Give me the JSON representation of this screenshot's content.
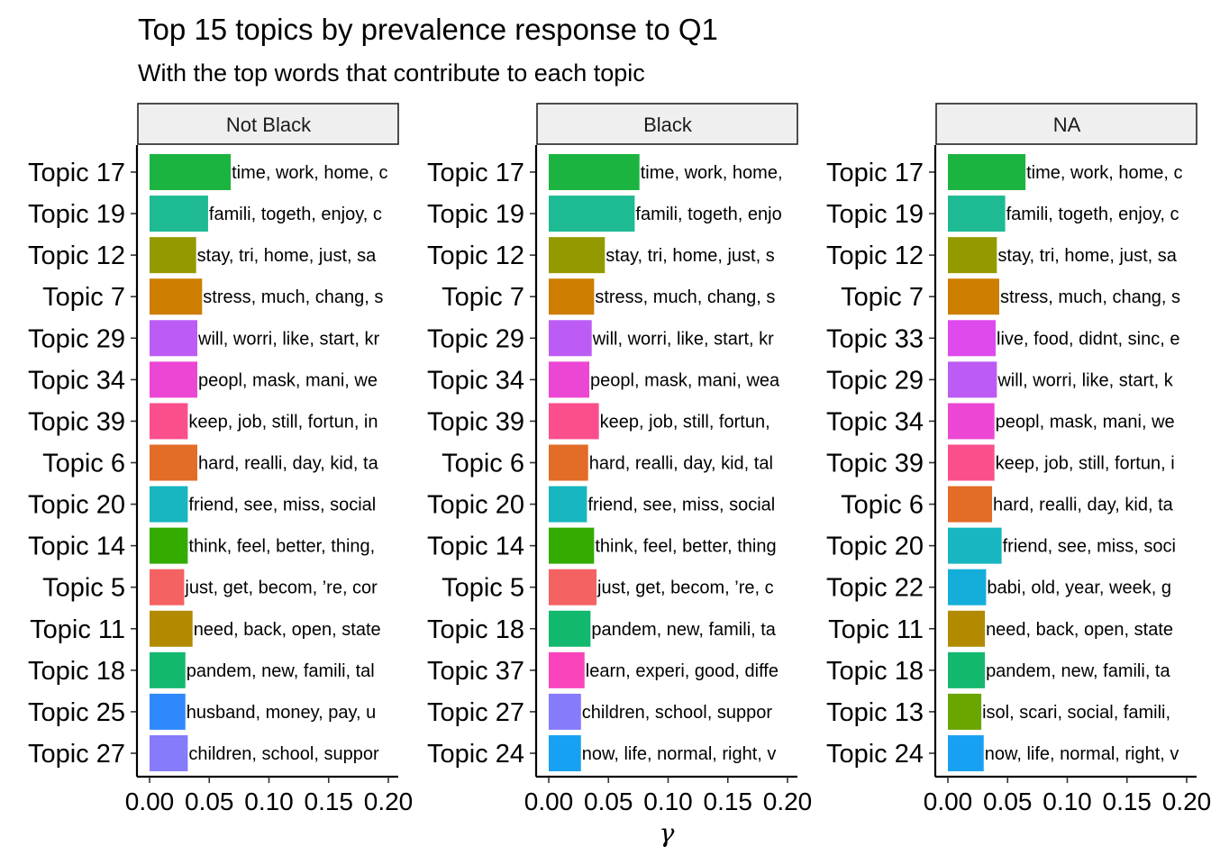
{
  "chart_data": {
    "type": "bar",
    "title": "Top 15 topics by prevalence response to Q1",
    "subtitle": "With the top words that contribute to each topic",
    "xlabel": "γ",
    "ylabel": "",
    "xlim": [
      0,
      0.2
    ],
    "xticks": [
      "0.00",
      "0.05",
      "0.10",
      "0.15",
      "0.20"
    ],
    "orientation": "horizontal",
    "grid": false,
    "legend": "none",
    "panels": [
      {
        "name": "Not Black",
        "bars": [
          {
            "topic": "Topic 17",
            "value": 0.068,
            "words": "time, work, home, c",
            "color": "#1bb440"
          },
          {
            "topic": "Topic 19",
            "value": 0.049,
            "words": "famili, togeth, enjoy, c",
            "color": "#1dba93"
          },
          {
            "topic": "Topic 12",
            "value": 0.039,
            "words": "stay, tri, home, just, sa",
            "color": "#939a00"
          },
          {
            "topic": "Topic 7",
            "value": 0.044,
            "words": "stress, much, chang, s",
            "color": "#cd7d00"
          },
          {
            "topic": "Topic 29",
            "value": 0.04,
            "words": "will, worri, like, start, kr",
            "color": "#bc5cf4"
          },
          {
            "topic": "Topic 34",
            "value": 0.04,
            "words": "peopl, mask, mani, we",
            "color": "#ec46d5"
          },
          {
            "topic": "Topic 39",
            "value": 0.032,
            "words": "keep, job, still, fortun, in",
            "color": "#fb4f8d"
          },
          {
            "topic": "Topic 6",
            "value": 0.04,
            "words": "hard, realli, day, kid, ta",
            "color": "#e36c26"
          },
          {
            "topic": "Topic 20",
            "value": 0.032,
            "words": "friend, see, miss, social",
            "color": "#17b6c0"
          },
          {
            "topic": "Topic 14",
            "value": 0.032,
            "words": "think, feel, better, thing,",
            "color": "#33ab00"
          },
          {
            "topic": "Topic 5",
            "value": 0.029,
            "words": "just, get, becom, ’re, cor",
            "color": "#f46262"
          },
          {
            "topic": "Topic 11",
            "value": 0.036,
            "words": "need, back, open, state",
            "color": "#b18a00"
          },
          {
            "topic": "Topic 18",
            "value": 0.03,
            "words": "pandem, new, famili, tal",
            "color": "#13b86f"
          },
          {
            "topic": "Topic 25",
            "value": 0.03,
            "words": "husband, money, pay, u",
            "color": "#2f88fc"
          },
          {
            "topic": "Topic 27",
            "value": 0.032,
            "words": "children, school, suppor",
            "color": "#857bfb"
          }
        ]
      },
      {
        "name": "Black",
        "bars": [
          {
            "topic": "Topic 17",
            "value": 0.076,
            "words": "time, work, home,",
            "color": "#1bb440"
          },
          {
            "topic": "Topic 19",
            "value": 0.072,
            "words": "famili, togeth, enjo",
            "color": "#1dba93"
          },
          {
            "topic": "Topic 12",
            "value": 0.047,
            "words": "stay, tri, home, just, s",
            "color": "#939a00"
          },
          {
            "topic": "Topic 7",
            "value": 0.038,
            "words": "stress, much, chang, s",
            "color": "#cd7d00"
          },
          {
            "topic": "Topic 29",
            "value": 0.036,
            "words": "will, worri, like, start, kr",
            "color": "#bc5cf4"
          },
          {
            "topic": "Topic 34",
            "value": 0.034,
            "words": "peopl, mask, mani, wea",
            "color": "#ec46d5"
          },
          {
            "topic": "Topic 39",
            "value": 0.042,
            "words": "keep, job, still, fortun,",
            "color": "#fb4f8d"
          },
          {
            "topic": "Topic 6",
            "value": 0.033,
            "words": "hard, realli, day, kid, tal",
            "color": "#e36c26"
          },
          {
            "topic": "Topic 20",
            "value": 0.032,
            "words": "friend, see, miss, social",
            "color": "#17b6c0"
          },
          {
            "topic": "Topic 14",
            "value": 0.038,
            "words": "think, feel, better, thing",
            "color": "#33ab00"
          },
          {
            "topic": "Topic 5",
            "value": 0.04,
            "words": "just, get, becom, ’re, c",
            "color": "#f46262"
          },
          {
            "topic": "Topic 18",
            "value": 0.035,
            "words": "pandem, new, famili, ta",
            "color": "#13b86f"
          },
          {
            "topic": "Topic 37",
            "value": 0.03,
            "words": "learn, experi, good, diffe",
            "color": "#fa44bb"
          },
          {
            "topic": "Topic 27",
            "value": 0.027,
            "words": "children, school, suppor",
            "color": "#857bfb"
          },
          {
            "topic": "Topic 24",
            "value": 0.027,
            "words": "now, life, normal, right, v",
            "color": "#18a1f2"
          }
        ]
      },
      {
        "name": "NA",
        "bars": [
          {
            "topic": "Topic 17",
            "value": 0.065,
            "words": "time, work, home, c",
            "color": "#1bb440"
          },
          {
            "topic": "Topic 19",
            "value": 0.048,
            "words": "famili, togeth, enjoy, c",
            "color": "#1dba93"
          },
          {
            "topic": "Topic 12",
            "value": 0.041,
            "words": "stay, tri, home, just, sa",
            "color": "#939a00"
          },
          {
            "topic": "Topic 7",
            "value": 0.043,
            "words": "stress, much, chang, s",
            "color": "#cd7d00"
          },
          {
            "topic": "Topic 33",
            "value": 0.04,
            "words": "live, food, didnt, sinc, e",
            "color": "#df4aee"
          },
          {
            "topic": "Topic 29",
            "value": 0.041,
            "words": "will, worri, like, start, k",
            "color": "#bc5cf4"
          },
          {
            "topic": "Topic 34",
            "value": 0.039,
            "words": "peopl, mask, mani, we",
            "color": "#ec46d5"
          },
          {
            "topic": "Topic 39",
            "value": 0.039,
            "words": "keep, job, still, fortun, i",
            "color": "#fb4f8d"
          },
          {
            "topic": "Topic 6",
            "value": 0.037,
            "words": "hard, realli, day, kid, ta",
            "color": "#e36c26"
          },
          {
            "topic": "Topic 20",
            "value": 0.045,
            "words": "friend, see, miss, soci",
            "color": "#17b6c0"
          },
          {
            "topic": "Topic 22",
            "value": 0.032,
            "words": "babi, old, year, week, g",
            "color": "#15aedb"
          },
          {
            "topic": "Topic 11",
            "value": 0.031,
            "words": "need, back, open, state",
            "color": "#b18a00"
          },
          {
            "topic": "Topic 18",
            "value": 0.031,
            "words": "pandem, new, famili, ta",
            "color": "#13b86f"
          },
          {
            "topic": "Topic 13",
            "value": 0.028,
            "words": "isol, scari, social, famili,",
            "color": "#6aa500"
          },
          {
            "topic": "Topic 24",
            "value": 0.03,
            "words": "now, life, normal, right, v",
            "color": "#18a1f2"
          }
        ]
      }
    ]
  }
}
